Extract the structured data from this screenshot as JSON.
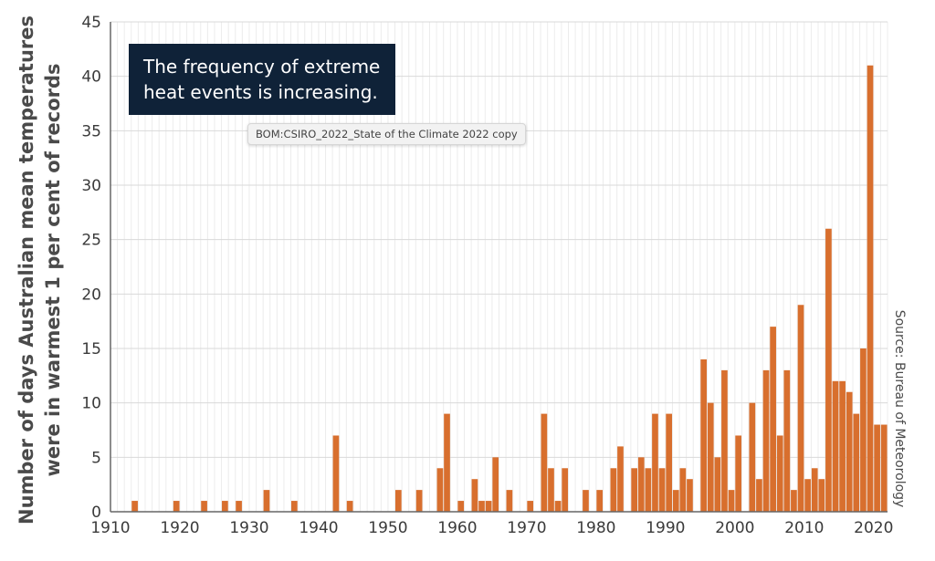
{
  "chart_data": {
    "type": "bar",
    "title": "The frequency of extreme heat events is increasing.",
    "ylabel_line1": "Number of days Australian mean temperatures",
    "ylabel_line2": "were in warmest 1 per cent of records",
    "xlabel": "",
    "source": "Source: Bureau of Meteorology",
    "xlim": [
      1910,
      2022
    ],
    "ylim": [
      0,
      45
    ],
    "x_ticks": [
      1910,
      1920,
      1930,
      1940,
      1950,
      1960,
      1970,
      1980,
      1990,
      2000,
      2010,
      2020
    ],
    "y_ticks": [
      0,
      5,
      10,
      15,
      20,
      25,
      30,
      35,
      40,
      45
    ],
    "grid": true,
    "bar_color": "#d86f2e",
    "x": [
      1913,
      1919,
      1923,
      1926,
      1928,
      1932,
      1936,
      1942,
      1944,
      1951,
      1954,
      1957,
      1958,
      1960,
      1962,
      1963,
      1964,
      1965,
      1967,
      1970,
      1972,
      1973,
      1974,
      1975,
      1978,
      1980,
      1982,
      1983,
      1985,
      1986,
      1987,
      1988,
      1989,
      1990,
      1991,
      1992,
      1993,
      1995,
      1996,
      1997,
      1998,
      1999,
      2000,
      2002,
      2003,
      2004,
      2005,
      2006,
      2007,
      2008,
      2009,
      2010,
      2011,
      2012,
      2013,
      2014,
      2015,
      2016,
      2017,
      2018,
      2019,
      2020,
      2021
    ],
    "values": [
      1,
      1,
      1,
      1,
      1,
      2,
      1,
      7,
      1,
      2,
      2,
      4,
      9,
      1,
      3,
      1,
      1,
      5,
      2,
      1,
      9,
      4,
      1,
      4,
      2,
      2,
      4,
      6,
      4,
      5,
      4,
      9,
      4,
      9,
      2,
      4,
      3,
      14,
      10,
      5,
      13,
      2,
      7,
      10,
      3,
      13,
      17,
      7,
      13,
      2,
      19,
      3,
      4,
      3,
      26,
      12,
      12,
      11,
      9,
      15,
      41,
      8,
      8
    ]
  },
  "callout": {
    "line1": "The frequency of extreme",
    "line2": "heat events is increasing."
  },
  "file_tag": "BOM:CSIRO_2022_State of the Climate 2022 copy"
}
